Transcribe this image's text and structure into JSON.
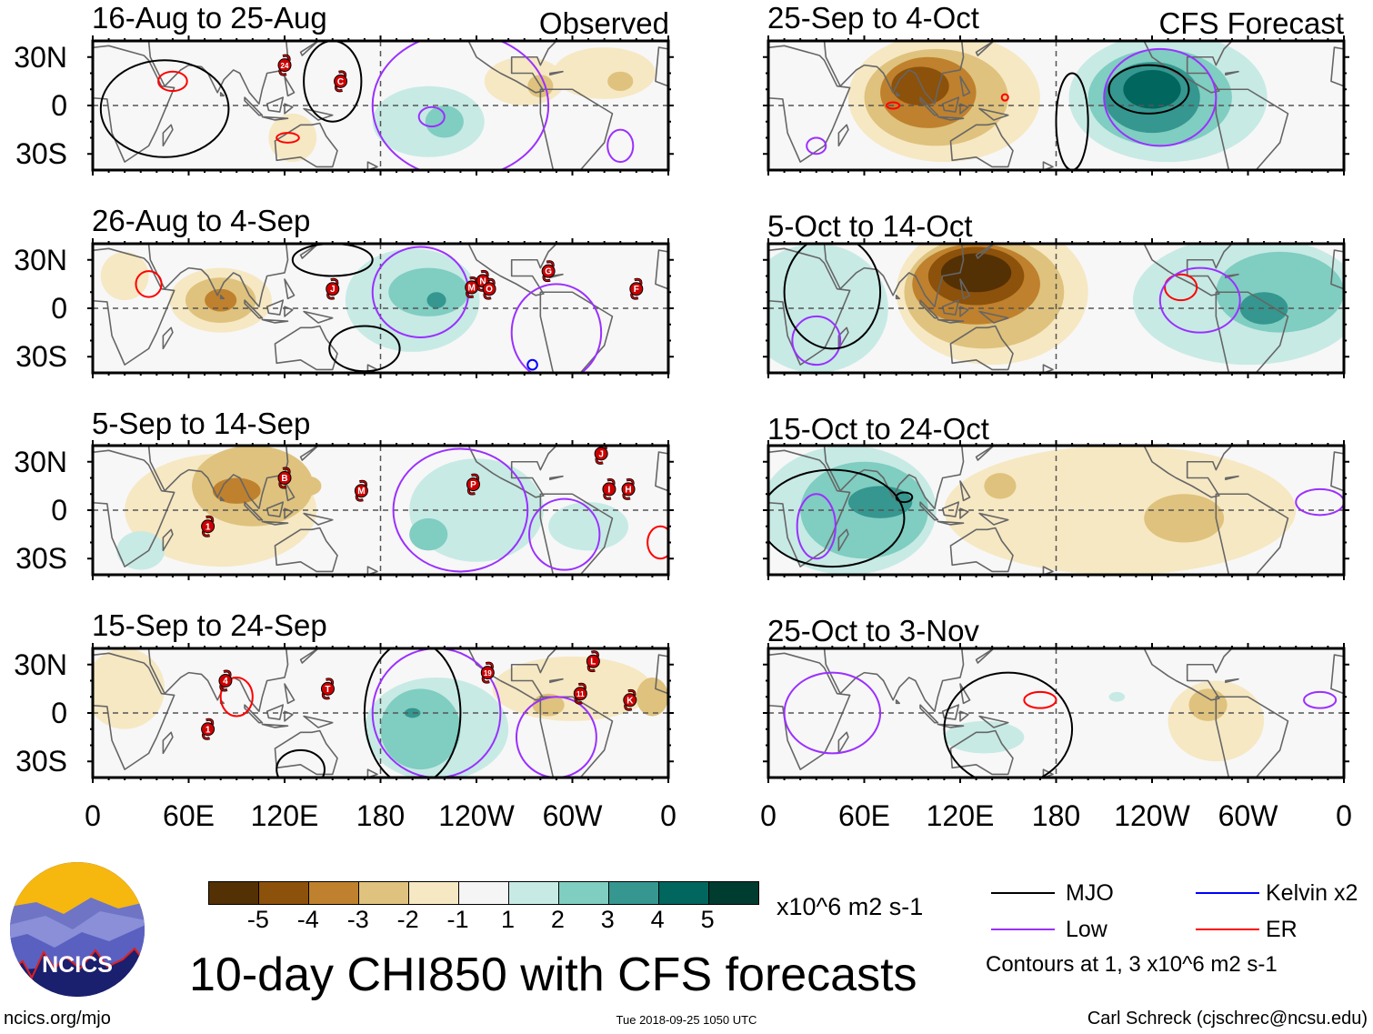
{
  "header": {
    "observed_label": "Observed",
    "forecast_label": "CFS Forecast"
  },
  "lat_labels": [
    "30N",
    "0",
    "30S"
  ],
  "lon_labels": [
    "0",
    "60E",
    "120E",
    "180",
    "120W",
    "60W",
    "0"
  ],
  "levels": {
    "colors": [
      "#543005",
      "#8c510a",
      "#bf812d",
      "#dfc27d",
      "#f6e8c3",
      "#f5f5f5",
      "#c7eae5",
      "#80cdc1",
      "#35978f",
      "#01665e",
      "#003c30"
    ],
    "labels": [
      "-5",
      "-4",
      "-3",
      "-2",
      "-1",
      "1",
      "2",
      "3",
      "4",
      "5"
    ],
    "units": "x10^6 m2 s-1"
  },
  "contour_colors": {
    "MJO": "#000000",
    "Low": "#9b30ff",
    "Kelvin": "#0000ff",
    "ER": "#ff0000"
  },
  "panels": [
    {
      "title": "16-Aug to 25-Aug",
      "blobs": [
        [
          125,
          -20,
          15,
          15,
          -1
        ],
        [
          270,
          15,
          25,
          15,
          -1
        ],
        [
          320,
          20,
          32,
          16,
          -1
        ],
        [
          280,
          12,
          8,
          7,
          -2
        ],
        [
          330,
          15,
          8,
          6,
          -2
        ],
        [
          210,
          -10,
          35,
          22,
          1
        ],
        [
          220,
          -10,
          12,
          10,
          2
        ]
      ],
      "contours": [
        [
          "MJO",
          45,
          -2,
          40,
          30
        ],
        [
          "MJO",
          150,
          15,
          18,
          25
        ],
        [
          "ER",
          50,
          15,
          9,
          6
        ],
        [
          "ER",
          122,
          -20,
          7,
          3
        ],
        [
          "Low",
          212,
          -7,
          8,
          6
        ],
        [
          "Low",
          330,
          -25,
          8,
          10
        ],
        [
          "Low",
          230,
          0,
          55,
          45
        ]
      ],
      "storms": [
        [
          "24",
          120,
          25
        ],
        [
          "C",
          155,
          15
        ]
      ]
    },
    {
      "title": "26-Aug to 4-Sep",
      "blobs": [
        [
          20,
          20,
          15,
          15,
          -1
        ],
        [
          80,
          5,
          32,
          20,
          -1
        ],
        [
          80,
          5,
          22,
          14,
          -2
        ],
        [
          80,
          5,
          10,
          7,
          -3
        ],
        [
          200,
          5,
          42,
          32,
          1
        ],
        [
          210,
          10,
          25,
          15,
          2
        ],
        [
          215,
          5,
          6,
          5,
          3
        ]
      ],
      "contours": [
        [
          "MJO",
          170,
          -25,
          22,
          14
        ],
        [
          "MJO",
          150,
          30,
          25,
          10
        ],
        [
          "ER",
          35,
          15,
          8,
          8
        ],
        [
          "Low",
          205,
          10,
          30,
          28
        ],
        [
          "Low",
          290,
          -15,
          28,
          30
        ],
        [
          "Kelvin",
          275,
          -35,
          3,
          3
        ]
      ],
      "storms": [
        [
          "J",
          150,
          12
        ],
        [
          "M",
          237,
          13
        ],
        [
          "N",
          244,
          17
        ],
        [
          "O",
          248,
          12
        ],
        [
          "G",
          285,
          23
        ],
        [
          "F",
          340,
          12
        ]
      ]
    },
    {
      "title": "5-Sep to 14-Sep",
      "blobs": [
        [
          80,
          0,
          60,
          35,
          -1
        ],
        [
          100,
          15,
          38,
          25,
          -2
        ],
        [
          90,
          12,
          15,
          8,
          -3
        ],
        [
          135,
          15,
          8,
          6,
          -2
        ],
        [
          240,
          0,
          42,
          32,
          1
        ],
        [
          210,
          -15,
          12,
          10,
          2
        ],
        [
          310,
          -10,
          25,
          15,
          1
        ],
        [
          30,
          -25,
          15,
          12,
          1
        ]
      ],
      "contours": [
        [
          "Low",
          230,
          0,
          42,
          38
        ],
        [
          "Low",
          295,
          -15,
          22,
          22
        ],
        [
          "ER",
          355,
          -20,
          8,
          10
        ]
      ],
      "storms": [
        [
          "B",
          120,
          20
        ],
        [
          "M",
          168,
          12
        ],
        [
          "P",
          238,
          16
        ],
        [
          "J",
          318,
          35
        ],
        [
          "I",
          323,
          13
        ],
        [
          "H",
          335,
          13
        ],
        [
          "1",
          72,
          -10
        ]
      ]
    },
    {
      "title": "15-Sep to 24-Sep",
      "blobs": [
        [
          20,
          15,
          25,
          25,
          -1
        ],
        [
          300,
          15,
          50,
          20,
          -1
        ],
        [
          285,
          5,
          10,
          7,
          -2
        ],
        [
          350,
          10,
          10,
          12,
          -2
        ],
        [
          215,
          -10,
          45,
          32,
          1
        ],
        [
          205,
          -10,
          25,
          25,
          2
        ],
        [
          200,
          0,
          5,
          3,
          3
        ]
      ],
      "contours": [
        [
          "MJO",
          200,
          0,
          30,
          45
        ],
        [
          "MJO",
          130,
          -35,
          15,
          12
        ],
        [
          "ER",
          90,
          10,
          10,
          12
        ],
        [
          "Low",
          215,
          0,
          40,
          40
        ],
        [
          "Low",
          290,
          -15,
          25,
          25
        ]
      ],
      "storms": [
        [
          "4",
          83,
          20
        ],
        [
          "T",
          147,
          15
        ],
        [
          "19",
          247,
          25
        ],
        [
          "L",
          313,
          32
        ],
        [
          "11",
          305,
          12
        ],
        [
          "K",
          336,
          8
        ],
        [
          "1",
          72,
          -10
        ]
      ]
    },
    {
      "title": "25-Sep to 4-Oct",
      "blobs": [
        [
          110,
          5,
          60,
          40,
          -1
        ],
        [
          105,
          5,
          45,
          30,
          -2
        ],
        [
          100,
          8,
          30,
          22,
          -3
        ],
        [
          95,
          12,
          18,
          12,
          -4
        ],
        [
          250,
          5,
          62,
          40,
          1
        ],
        [
          245,
          5,
          45,
          30,
          2
        ],
        [
          240,
          5,
          30,
          22,
          3
        ],
        [
          240,
          10,
          18,
          12,
          4
        ]
      ],
      "contours": [
        [
          "MJO",
          238,
          10,
          25,
          15
        ],
        [
          "MJO",
          190,
          -10,
          10,
          30
        ],
        [
          "Low",
          245,
          5,
          35,
          30
        ],
        [
          "Low",
          30,
          -25,
          6,
          5
        ],
        [
          "ER",
          78,
          0,
          4,
          2
        ],
        [
          "ER",
          148,
          5,
          2,
          2
        ]
      ],
      "storms": []
    },
    {
      "title": "5-Oct to 14-Oct",
      "blobs": [
        [
          30,
          0,
          45,
          40,
          1
        ],
        [
          300,
          5,
          72,
          40,
          1
        ],
        [
          320,
          10,
          40,
          25,
          2
        ],
        [
          310,
          0,
          15,
          10,
          3
        ],
        [
          140,
          10,
          60,
          45,
          -1
        ],
        [
          135,
          10,
          50,
          35,
          -2
        ],
        [
          130,
          15,
          40,
          25,
          -3
        ],
        [
          130,
          20,
          30,
          18,
          -4
        ],
        [
          130,
          22,
          22,
          12,
          -5
        ]
      ],
      "contours": [
        [
          "ER",
          258,
          13,
          10,
          8
        ],
        [
          "Low",
          270,
          5,
          25,
          20
        ],
        [
          "Low",
          30,
          -20,
          15,
          15
        ],
        [
          "MJO",
          40,
          10,
          30,
          35
        ]
      ],
      "storms": []
    },
    {
      "title": "15-Oct to 24-Oct",
      "blobs": [
        [
          220,
          0,
          110,
          40,
          -1
        ],
        [
          260,
          -5,
          25,
          15,
          -2
        ],
        [
          145,
          15,
          10,
          8,
          -2
        ],
        [
          50,
          0,
          55,
          40,
          1
        ],
        [
          60,
          0,
          40,
          30,
          2
        ],
        [
          70,
          5,
          20,
          10,
          3
        ]
      ],
      "contours": [
        [
          "MJO",
          40,
          -5,
          45,
          30
        ],
        [
          "MJO",
          85,
          8,
          5,
          3
        ],
        [
          "Low",
          30,
          -10,
          12,
          20
        ],
        [
          "Low",
          345,
          5,
          15,
          8
        ]
      ],
      "storms": []
    },
    {
      "title": "25-Oct to 3-Nov",
      "blobs": [
        [
          280,
          -5,
          30,
          25,
          -1
        ],
        [
          275,
          5,
          12,
          10,
          -2
        ],
        [
          135,
          -15,
          25,
          10,
          1
        ],
        [
          218,
          10,
          5,
          3,
          1
        ]
      ],
      "contours": [
        [
          "MJO",
          150,
          -10,
          40,
          35
        ],
        [
          "ER",
          170,
          8,
          10,
          5
        ],
        [
          "Low",
          40,
          0,
          30,
          25
        ],
        [
          "Low",
          345,
          8,
          10,
          5
        ]
      ],
      "storms": []
    }
  ],
  "legend": {
    "items": [
      {
        "key": "MJO",
        "label": "MJO"
      },
      {
        "key": "Low",
        "label": "Low"
      },
      {
        "key": "Kelvin",
        "label": "Kelvin x2"
      },
      {
        "key": "ER",
        "label": "ER"
      }
    ],
    "note": "Contours at 1, 3 x10^6 m2 s-1"
  },
  "title": "10-day CHI850 with CFS forecasts",
  "logo_text": "NCICS",
  "footer": {
    "url": "ncics.org/mjo",
    "timestamp": "Tue 2018-09-25 1050 UTC",
    "author": "Carl Schreck (cjschrec@ncsu.edu)"
  }
}
